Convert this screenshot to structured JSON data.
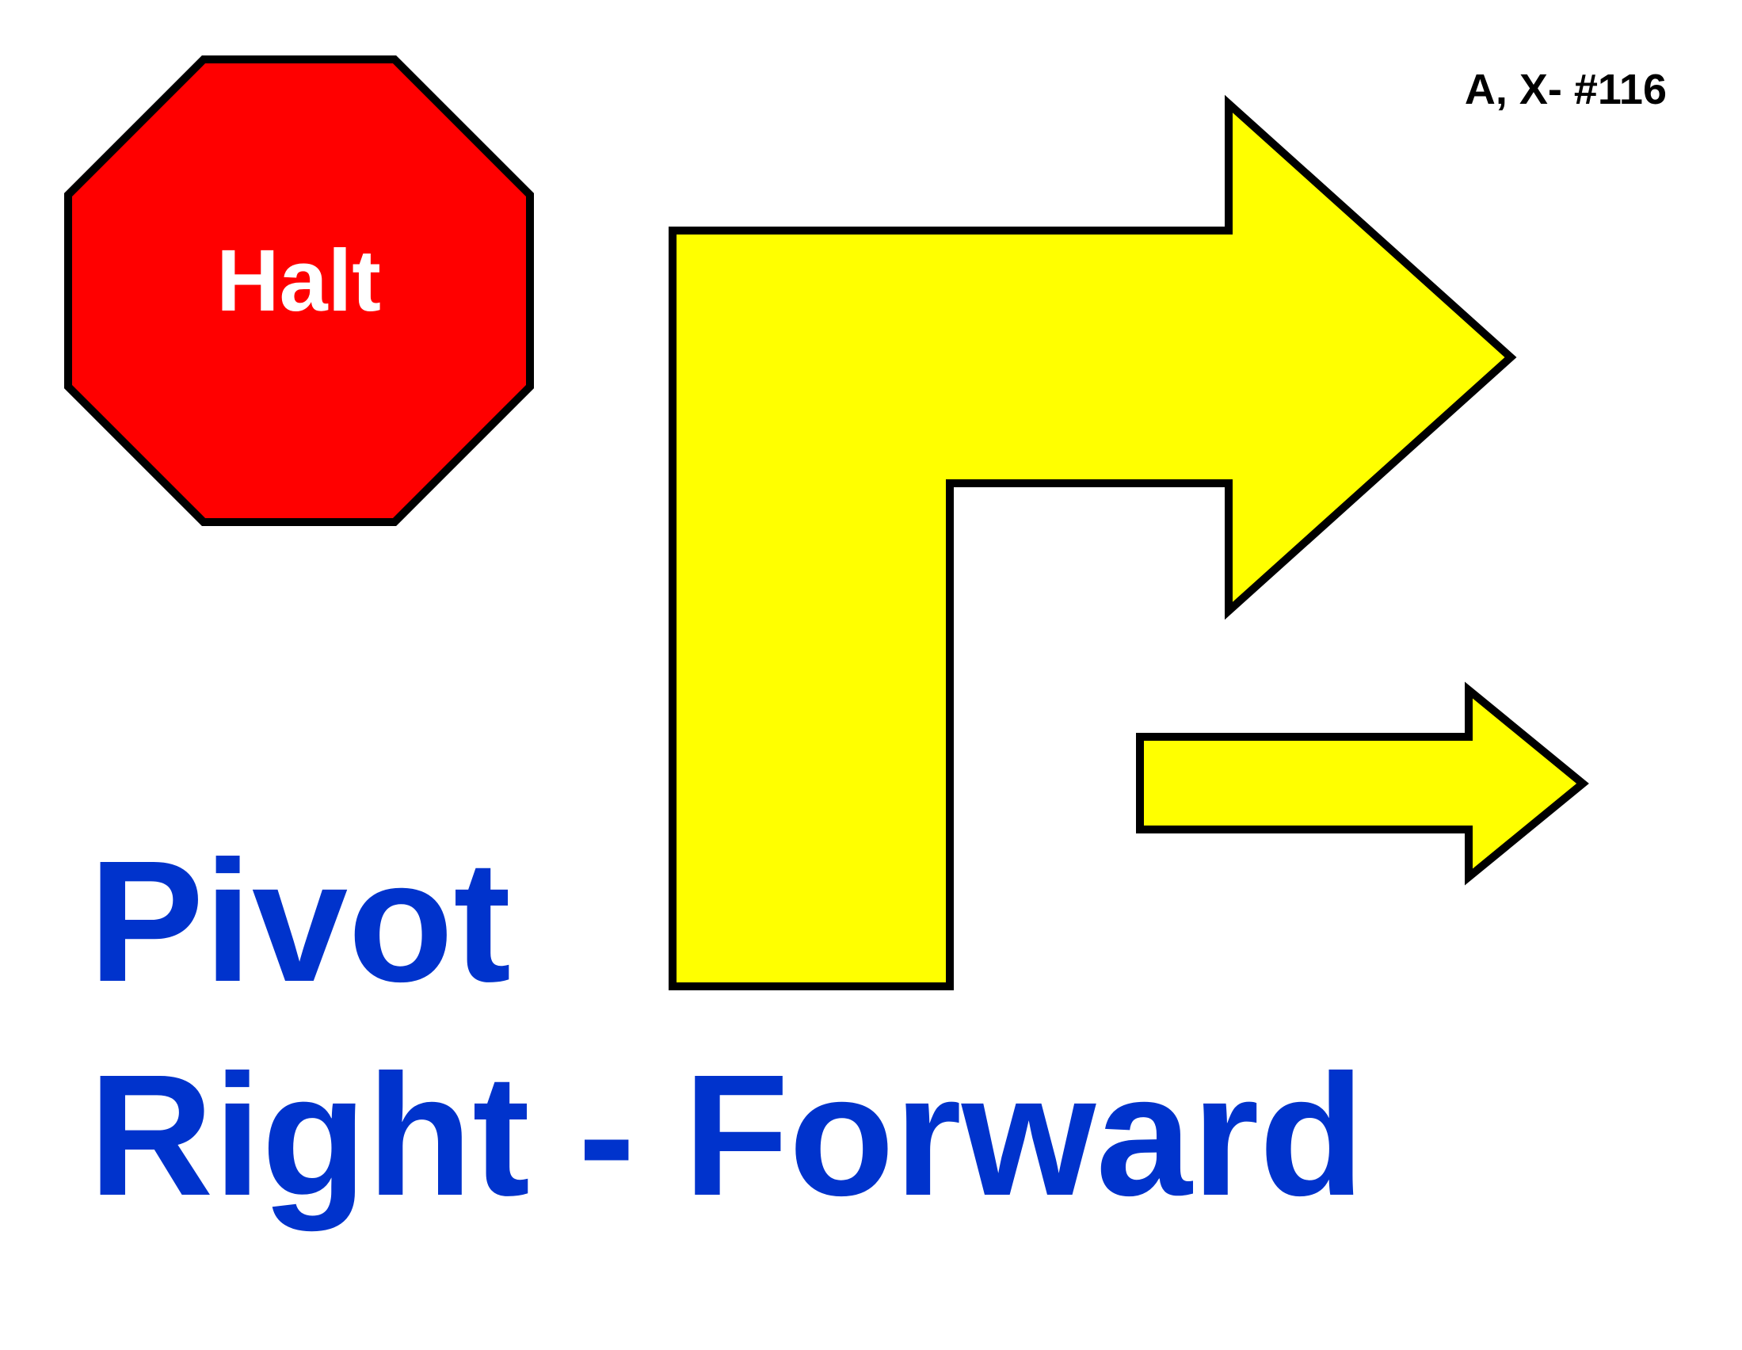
{
  "sign": {
    "number": "A, X- #116",
    "halt_label": "Halt",
    "title_line_1": "Pivot",
    "title_line_2": "Right - Forward"
  },
  "colors": {
    "halt_fill": "#ff0000",
    "arrow_fill": "#ffff00",
    "outline": "#000000",
    "title_text": "#0033cc",
    "halt_text": "#ffffff"
  },
  "icons": {
    "halt": "stop-octagon-icon",
    "pivot_arrow": "pivot-right-arrow-icon",
    "forward_arrow": "forward-arrow-icon"
  }
}
